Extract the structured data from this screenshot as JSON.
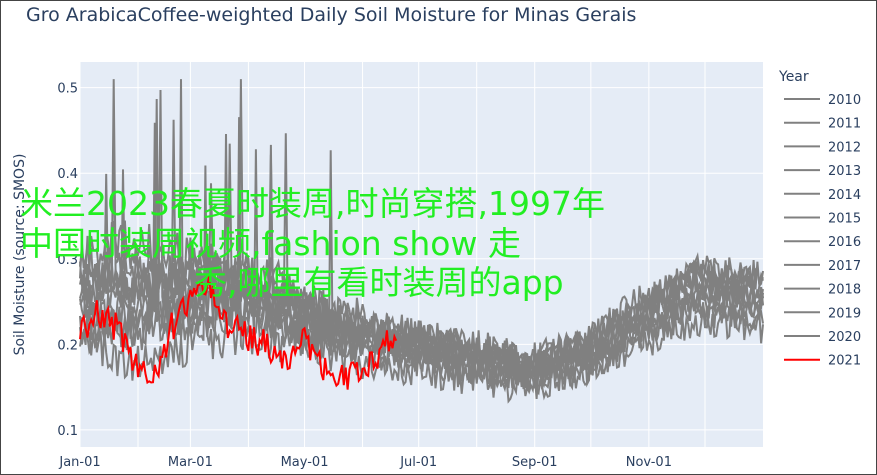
{
  "chart_data": {
    "type": "line",
    "title": "Gro ArabicaCoffee-weighted Daily Soil Moisture for Minas Gerais",
    "xlabel": "",
    "ylabel": "Soil Moisture (source: SMOS)",
    "x_ticks": [
      "Jan-01",
      "Mar-01",
      "May-01",
      "Jul-01",
      "Sep-01",
      "Nov-01"
    ],
    "y_ticks": [
      0.1,
      0.2,
      0.3,
      0.4,
      0.5
    ],
    "xlim": [
      1,
      366
    ],
    "ylim": [
      0.08,
      0.53
    ],
    "legend_title": "Year",
    "legend_position": "right",
    "grid": true,
    "plot_bg": "#e5ecf6",
    "series": [
      {
        "name": "2010",
        "color": "#808080",
        "key_days": [
          1,
          30,
          60,
          90,
          120,
          150,
          180,
          210,
          240,
          270,
          300,
          330,
          366
        ],
        "key_values": [
          0.24,
          0.27,
          0.28,
          0.27,
          0.25,
          0.23,
          0.21,
          0.19,
          0.18,
          0.2,
          0.24,
          0.27,
          0.25
        ]
      },
      {
        "name": "2011",
        "color": "#808080",
        "key_days": [
          1,
          30,
          60,
          90,
          120,
          150,
          180,
          210,
          240,
          270,
          300,
          330,
          366
        ],
        "key_values": [
          0.26,
          0.3,
          0.27,
          0.3,
          0.25,
          0.22,
          0.2,
          0.19,
          0.17,
          0.19,
          0.23,
          0.29,
          0.27
        ]
      },
      {
        "name": "2012",
        "color": "#808080",
        "key_days": [
          1,
          30,
          60,
          90,
          120,
          150,
          180,
          210,
          240,
          270,
          300,
          330,
          366
        ],
        "key_values": [
          0.22,
          0.25,
          0.24,
          0.26,
          0.23,
          0.21,
          0.2,
          0.18,
          0.16,
          0.18,
          0.22,
          0.25,
          0.24
        ]
      },
      {
        "name": "2013",
        "color": "#808080",
        "key_days": [
          1,
          30,
          60,
          90,
          120,
          150,
          180,
          210,
          240,
          270,
          300,
          330,
          366
        ],
        "key_values": [
          0.28,
          0.26,
          0.3,
          0.28,
          0.24,
          0.22,
          0.21,
          0.2,
          0.18,
          0.19,
          0.24,
          0.28,
          0.26
        ]
      },
      {
        "name": "2014",
        "color": "#808080",
        "key_days": [
          1,
          30,
          60,
          90,
          120,
          150,
          180,
          210,
          240,
          270,
          300,
          330,
          366
        ],
        "key_values": [
          0.2,
          0.18,
          0.2,
          0.21,
          0.2,
          0.18,
          0.17,
          0.16,
          0.15,
          0.17,
          0.2,
          0.23,
          0.22
        ]
      },
      {
        "name": "2015",
        "color": "#808080",
        "key_days": [
          1,
          30,
          60,
          90,
          120,
          150,
          180,
          210,
          240,
          270,
          300,
          330,
          366
        ],
        "key_values": [
          0.23,
          0.21,
          0.24,
          0.25,
          0.22,
          0.2,
          0.19,
          0.18,
          0.17,
          0.18,
          0.21,
          0.26,
          0.25
        ]
      },
      {
        "name": "2016",
        "color": "#808080",
        "key_days": [
          1,
          30,
          60,
          90,
          120,
          150,
          180,
          210,
          240,
          270,
          300,
          330,
          366
        ],
        "key_values": [
          0.3,
          0.27,
          0.26,
          0.24,
          0.22,
          0.21,
          0.2,
          0.19,
          0.18,
          0.2,
          0.25,
          0.28,
          0.27
        ]
      },
      {
        "name": "2017",
        "color": "#808080",
        "key_days": [
          1,
          30,
          60,
          90,
          120,
          150,
          180,
          210,
          240,
          270,
          300,
          330,
          366
        ],
        "key_values": [
          0.25,
          0.23,
          0.25,
          0.23,
          0.21,
          0.19,
          0.18,
          0.17,
          0.16,
          0.18,
          0.22,
          0.26,
          0.24
        ]
      },
      {
        "name": "2018",
        "color": "#808080",
        "key_days": [
          1,
          30,
          60,
          90,
          120,
          150,
          180,
          210,
          240,
          270,
          300,
          330,
          366
        ],
        "key_values": [
          0.27,
          0.29,
          0.27,
          0.26,
          0.23,
          0.22,
          0.2,
          0.18,
          0.17,
          0.19,
          0.23,
          0.27,
          0.26
        ]
      },
      {
        "name": "2019",
        "color": "#808080",
        "key_days": [
          1,
          30,
          60,
          90,
          120,
          150,
          180,
          210,
          240,
          270,
          300,
          330,
          366
        ],
        "key_values": [
          0.21,
          0.22,
          0.23,
          0.24,
          0.21,
          0.2,
          0.19,
          0.17,
          0.16,
          0.17,
          0.21,
          0.24,
          0.23
        ]
      },
      {
        "name": "2020",
        "color": "#808080",
        "key_days": [
          1,
          30,
          60,
          90,
          120,
          150,
          180,
          210,
          240,
          270,
          300,
          330,
          366
        ],
        "key_values": [
          0.3,
          0.33,
          0.3,
          0.27,
          0.24,
          0.22,
          0.21,
          0.2,
          0.18,
          0.2,
          0.24,
          0.29,
          0.28
        ]
      },
      {
        "name": "2021",
        "color": "#ff0000",
        "key_days": [
          1,
          10,
          20,
          30,
          40,
          50,
          60,
          70,
          80,
          90,
          100,
          110,
          120,
          130,
          140,
          150,
          160,
          170
        ],
        "key_values": [
          0.21,
          0.24,
          0.22,
          0.18,
          0.16,
          0.22,
          0.25,
          0.27,
          0.22,
          0.21,
          0.2,
          0.18,
          0.21,
          0.17,
          0.16,
          0.17,
          0.18,
          0.22
        ]
      }
    ]
  },
  "overlay_text": [
    "米兰2023春夏时装周,时尚穿搭,1997年",
    "中国时装周视频,fashion show 走",
    "秀,哪里有看时装周的app"
  ]
}
